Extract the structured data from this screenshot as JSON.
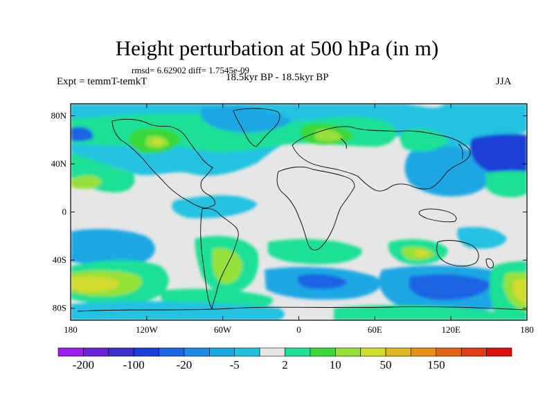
{
  "title": "Height perturbation at 500 hPa (in m)",
  "subtitle_stats": "rmsd= 6.62902 diff= 1.7545e-09",
  "left_label": "Expt = temmT-temkT",
  "center_label": "18.5kyr BP - 18.5kyr BP",
  "right_label": "JJA",
  "map": {
    "projection": "cylindrical equidistant",
    "lon_range": [
      -180,
      180
    ],
    "lat_range": [
      -90,
      90
    ],
    "background_color": "#e6e6e6",
    "coastline_color": "#000000",
    "x_ticks": [
      "180",
      "120W",
      "60W",
      "0",
      "60E",
      "120E",
      "180"
    ],
    "y_ticks": [
      "80N",
      "40N",
      "0",
      "40S",
      "80S"
    ]
  },
  "colorbar": {
    "colors": [
      "#9a1fea",
      "#6a21d8",
      "#3d2bcb",
      "#1a3fd8",
      "#1b64e3",
      "#1e8ae6",
      "#1aa7e3",
      "#21c2e0",
      "#e6e6e6",
      "#1fe096",
      "#39d83b",
      "#96e03a",
      "#d2dc2d",
      "#dcb71d",
      "#e68f17",
      "#e26515",
      "#e03d14",
      "#e00f0f"
    ],
    "tick_labels": [
      "-200",
      "-100",
      "-20",
      "-5",
      "2",
      "10",
      "50",
      "150"
    ]
  }
}
